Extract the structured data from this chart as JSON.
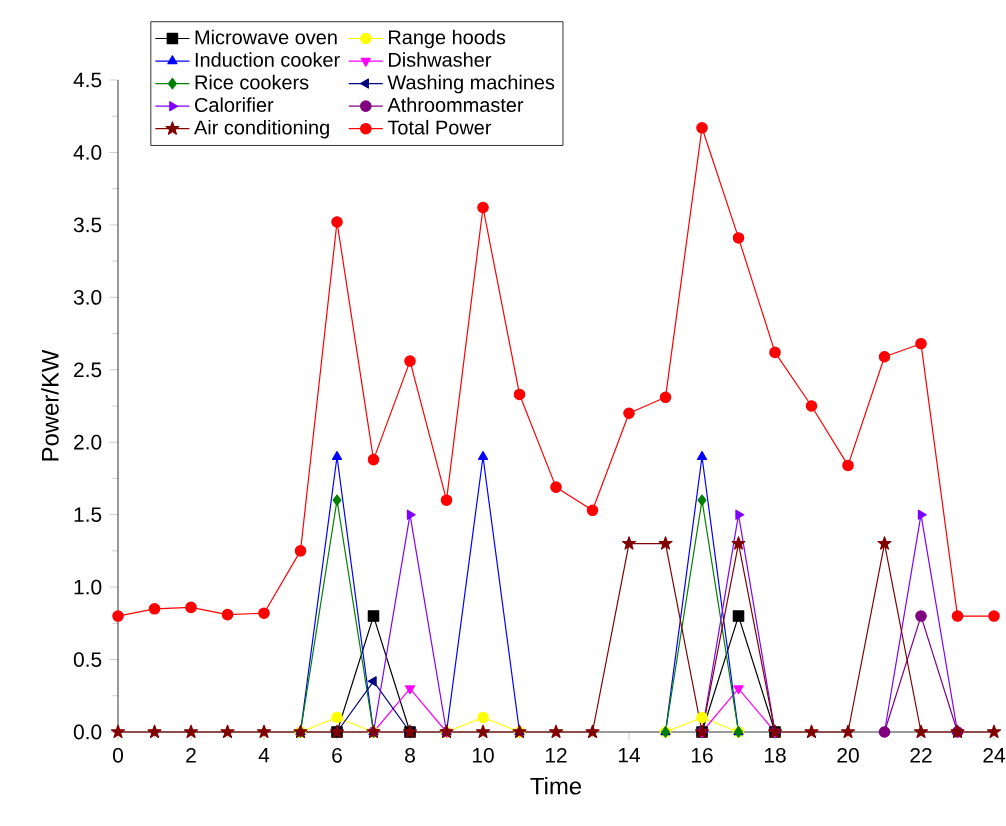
{
  "chart_data": {
    "type": "line",
    "xlabel": "Time",
    "ylabel": "Power/KW",
    "x": [
      0,
      1,
      2,
      3,
      4,
      5,
      6,
      7,
      8,
      9,
      10,
      11,
      12,
      13,
      14,
      15,
      16,
      17,
      18,
      19,
      20,
      21,
      22,
      23,
      24
    ],
    "xlim": [
      0,
      24
    ],
    "xticks": [
      0,
      2,
      4,
      6,
      8,
      10,
      12,
      14,
      16,
      18,
      20,
      22,
      24
    ],
    "ylim": [
      0,
      4.5
    ],
    "yticks": [
      {
        "value": 0,
        "label": "0.0"
      },
      {
        "value": 0.5,
        "label": "0.5"
      },
      {
        "value": 1,
        "label": "1.0"
      },
      {
        "value": 1.5,
        "label": "1.5"
      },
      {
        "value": 2,
        "label": "2.0"
      },
      {
        "value": 2.5,
        "label": "2.5"
      },
      {
        "value": 3,
        "label": "3.0"
      },
      {
        "value": 3.5,
        "label": "3.5"
      },
      {
        "value": 4,
        "label": "4.0"
      },
      {
        "value": 4.5,
        "label": "4.5"
      }
    ],
    "legend": "top left",
    "series": [
      {
        "name": "Microwave oven",
        "color": "#000000",
        "marker": "square",
        "values": [
          null,
          null,
          null,
          null,
          null,
          null,
          0,
          0.8,
          0,
          null,
          null,
          null,
          null,
          null,
          null,
          null,
          0,
          0.8,
          0,
          null,
          null,
          null,
          null,
          null,
          null
        ]
      },
      {
        "name": "Range hoods",
        "color": "#ffff00",
        "marker": "circle",
        "values": [
          null,
          null,
          null,
          null,
          null,
          0,
          0.1,
          0,
          null,
          0,
          0.1,
          0,
          null,
          null,
          null,
          0,
          0.1,
          0,
          null,
          null,
          null,
          null,
          null,
          null,
          null
        ]
      },
      {
        "name": "Induction cooker",
        "color": "#0000ff",
        "marker": "triangle",
        "values": [
          null,
          null,
          null,
          null,
          null,
          0,
          1.9,
          0,
          null,
          0,
          1.9,
          0,
          null,
          null,
          null,
          0,
          1.9,
          0,
          null,
          null,
          null,
          null,
          null,
          null,
          null
        ]
      },
      {
        "name": "Dishwasher",
        "color": "#ff00ff",
        "marker": "triangle-down",
        "values": [
          null,
          null,
          null,
          null,
          null,
          null,
          null,
          0,
          0.3,
          0,
          null,
          null,
          null,
          null,
          null,
          null,
          0,
          0.3,
          0,
          null,
          null,
          null,
          null,
          null,
          null
        ]
      },
      {
        "name": "Rice cookers",
        "color": "#008000",
        "marker": "diamond",
        "values": [
          null,
          null,
          null,
          null,
          null,
          0,
          1.6,
          0,
          null,
          null,
          null,
          null,
          null,
          null,
          null,
          0,
          1.6,
          0,
          null,
          null,
          null,
          null,
          null,
          null,
          null
        ]
      },
      {
        "name": "Washing machines",
        "color": "#000080",
        "marker": "triangle-left",
        "values": [
          null,
          null,
          null,
          null,
          null,
          null,
          0,
          0.35,
          0,
          null,
          null,
          null,
          null,
          null,
          null,
          null,
          null,
          null,
          null,
          null,
          null,
          null,
          null,
          null,
          null
        ]
      },
      {
        "name": "Calorifier",
        "color": "#8000ff",
        "marker": "triangle-right",
        "values": [
          null,
          null,
          null,
          null,
          null,
          null,
          null,
          0,
          1.5,
          0,
          null,
          null,
          null,
          null,
          null,
          null,
          0,
          1.5,
          0,
          null,
          null,
          0,
          1.5,
          0,
          null
        ]
      },
      {
        "name": "Athroommaster",
        "color": "#800080",
        "marker": "circle",
        "values": [
          null,
          null,
          null,
          null,
          null,
          null,
          null,
          null,
          null,
          null,
          null,
          null,
          null,
          null,
          null,
          null,
          null,
          null,
          null,
          null,
          null,
          0,
          0.8,
          0,
          null
        ]
      },
      {
        "name": "Air conditioning",
        "color": "#800000",
        "marker": "star",
        "values": [
          0,
          0,
          0,
          0,
          0,
          0,
          0,
          0,
          0,
          0,
          0,
          0,
          0,
          0,
          1.3,
          1.3,
          0,
          1.3,
          0,
          0,
          0,
          1.3,
          0,
          0,
          0
        ]
      },
      {
        "name": "Total Power",
        "color": "#ff0000",
        "marker": "circle",
        "values": [
          0.8,
          0.85,
          0.86,
          0.81,
          0.82,
          1.25,
          3.52,
          1.88,
          2.56,
          1.6,
          3.62,
          2.33,
          1.69,
          1.53,
          2.2,
          2.31,
          4.17,
          3.41,
          2.62,
          2.25,
          1.84,
          2.59,
          2.68,
          0.8,
          0.8
        ]
      }
    ]
  }
}
